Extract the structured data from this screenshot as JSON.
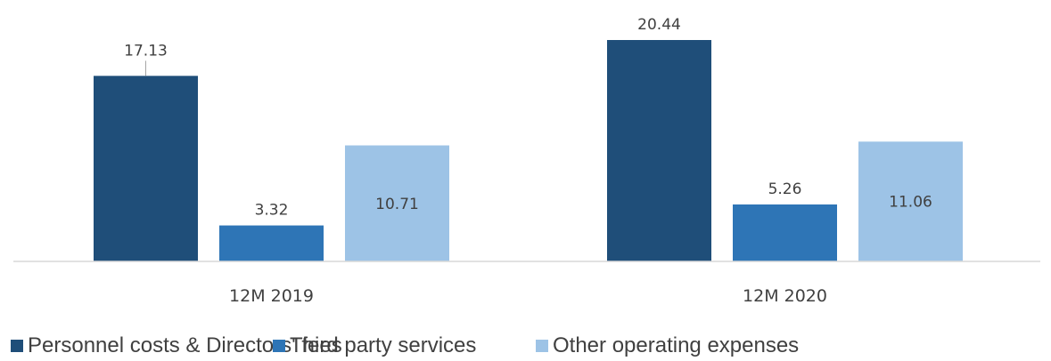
{
  "chart_data": {
    "type": "bar",
    "title": "",
    "xlabel": "",
    "ylabel": "",
    "categories": [
      "12M 2019",
      "12M 2020"
    ],
    "series": [
      {
        "name": "Personnel costs & Directors' fees",
        "values": [
          17.13,
          20.44
        ],
        "color": "#1f4e79",
        "value_labels": [
          "17.13",
          "20.44"
        ]
      },
      {
        "name": "Third party services",
        "values": [
          3.32,
          5.26
        ],
        "color": "#2e75b6",
        "value_labels": [
          "3.32",
          "5.26"
        ]
      },
      {
        "name": "Other operating expenses",
        "values": [
          10.71,
          11.06
        ],
        "color": "#9dc3e6",
        "value_labels": [
          "10.71",
          "11.06"
        ]
      }
    ],
    "ylim": [
      0,
      20.44
    ],
    "grid": false,
    "axis_line_color": "#d9d9d9",
    "legend_position": "bottom"
  }
}
